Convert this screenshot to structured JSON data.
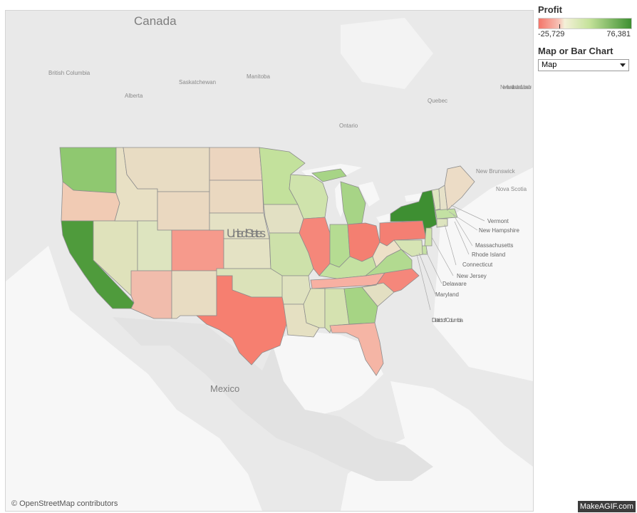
{
  "map": {
    "places": {
      "canada": "Canada",
      "mexico": "Mexico",
      "united_states": "United States",
      "british_columbia": "British Columbia",
      "alberta": "Alberta",
      "saskatchewan": "Saskatchewan",
      "manitoba": "Manitoba",
      "ontario": "Ontario",
      "quebec": "Quebec",
      "newfoundland": "Newfoundland and Labrador",
      "new_brunswick": "New Brunswick",
      "nova_scotia": "Nova Scotia"
    },
    "callouts": [
      "Vermont",
      "New Hampshire",
      "Massachusetts",
      "Rhode Island",
      "Connecticut",
      "New Jersey",
      "Delaware",
      "Maryland",
      "District of Columbia"
    ],
    "state_colors": {
      "washington": "#8fc870",
      "oregon": "#f1cbb4",
      "california": "#4f9b3c",
      "nevada": "#dfe2bb",
      "idaho": "#e8e0c4",
      "montana": "#e8dcc3",
      "wyoming": "#ead8c0",
      "utah": "#dde4bf",
      "arizona": "#f1bcac",
      "colorado": "#f69a8c",
      "new_mexico": "#e8dcc2",
      "north_dakota": "#ecd5bf",
      "south_dakota": "#ead8c0",
      "nebraska": "#e4e1c4",
      "kansas": "#e4e2c4",
      "oklahoma": "#dbe2b9",
      "texas": "#f67f70",
      "minnesota": "#c3e19c",
      "iowa": "#e2e0c3",
      "missouri": "#cde1aa",
      "arkansas": "#dfe2bf",
      "louisiana": "#e5e0c2",
      "wisconsin": "#cfe3ac",
      "illinois": "#f5877a",
      "michigan": "#a7d486",
      "indiana": "#b5dc92",
      "ohio": "#f47f71",
      "kentucky": "#c4e1a1",
      "tennessee": "#f7b0a2",
      "mississippi": "#dfe2ba",
      "alabama": "#d5e2b0",
      "georgia": "#a6d484",
      "florida": "#f5b5a5",
      "south_carolina": "#e3dfc2",
      "north_carolina": "#f5877b",
      "virginia": "#b2da90",
      "west_virginia": "#ede0c7",
      "pennsylvania": "#f47f73",
      "new_york": "#3e8f32",
      "maine": "#ecdcc6",
      "vermont": "#dfe5c2",
      "new_hampshire": "#e6e1c8",
      "massachusetts": "#c3e1a3",
      "connecticut": "#dde4bf",
      "new_jersey": "#cfe4ad",
      "maryland": "#d6e4b4",
      "delaware": "#c6e1a4"
    },
    "attribution": "© OpenStreetMap contributors"
  },
  "legend": {
    "title": "Profit",
    "min_label": "-25,729",
    "max_label": "76,381",
    "colors": {
      "low": "#f4766a",
      "mid": "#f4f0d8",
      "high": "#3e8f32"
    }
  },
  "selector": {
    "title": "Map or Bar Chart",
    "value": "Map"
  },
  "watermark": "MakeAGIF.com"
}
